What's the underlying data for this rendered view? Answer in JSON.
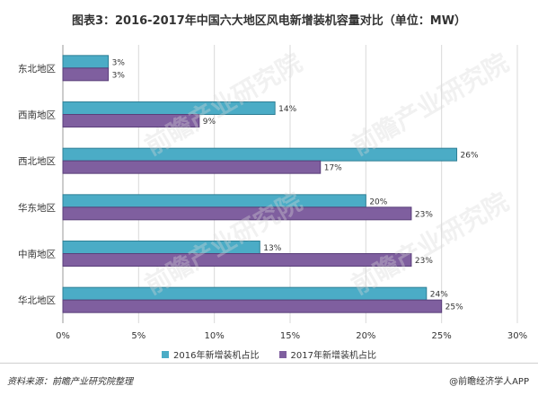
{
  "title": "图表3：2016-2017年中国六大地区风电新增装机容量对比（单位：MW）",
  "footer": {
    "source": "资料来源：前瞻产业研究院整理",
    "brand": "@前瞻经济学人APP"
  },
  "watermark": "前瞻产业研究院",
  "colors": {
    "s2016": "#4bacc6",
    "s2016_edge": "#2e7f95",
    "s2017": "#7f5f9f",
    "s2017_edge": "#5a3f7a",
    "grid": "#d9d9d9"
  },
  "chart_data": {
    "type": "bar",
    "orientation": "horizontal",
    "categories": [
      "东北地区",
      "西南地区",
      "西北地区",
      "华东地区",
      "中南地区",
      "华北地区"
    ],
    "series": [
      {
        "name": "2016年新增装机占比",
        "values": [
          3,
          14,
          26,
          20,
          13,
          24
        ],
        "labels": [
          "3%",
          "14%",
          "26%",
          "20%",
          "13%",
          "24%"
        ]
      },
      {
        "name": "2017年新增装机占比",
        "values": [
          3,
          9,
          17,
          23,
          23,
          25
        ],
        "labels": [
          "3%",
          "9%",
          "17%",
          "23%",
          "23%",
          "25%"
        ]
      }
    ],
    "xlim": [
      0,
      30
    ],
    "xticks": [
      "0%",
      "5%",
      "10%",
      "15%",
      "20%",
      "25%",
      "30%"
    ],
    "grid": "vertical",
    "legend": "bottom"
  }
}
